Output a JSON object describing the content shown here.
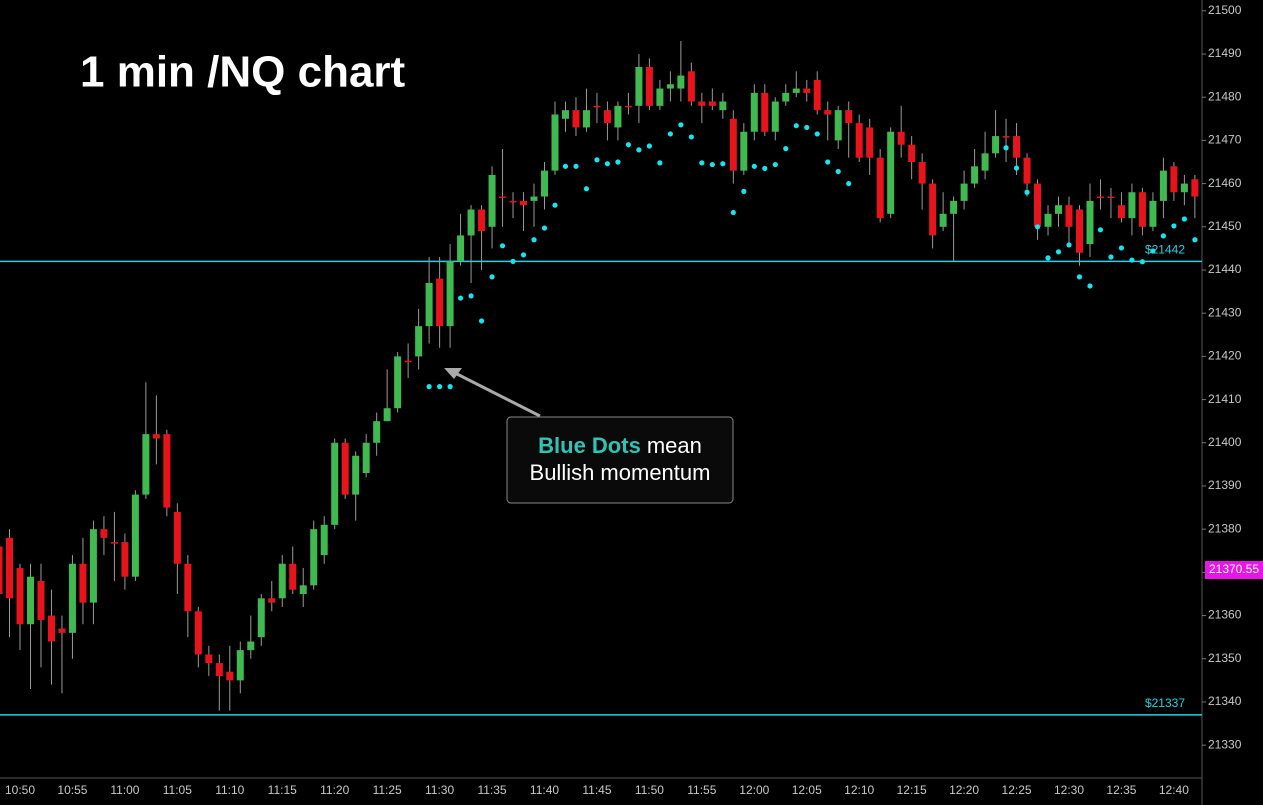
{
  "chart_data": {
    "type": "candlestick",
    "title": "1 min /NQ chart",
    "annotation": [
      "Blue Dots",
      "mean",
      "Bullish momentum"
    ],
    "categories": [
      null,
      null,
      "10:50",
      null,
      null,
      null,
      null,
      "10:55",
      null,
      null,
      null,
      null,
      "11:00",
      null,
      null,
      null,
      null,
      "11:05",
      null,
      null,
      null,
      null,
      "11:10",
      null,
      null,
      null,
      null,
      "11:15",
      null,
      null,
      null,
      null,
      "11:20",
      null,
      null,
      null,
      null,
      "11:25",
      null,
      null,
      null,
      null,
      "11:30",
      null,
      null,
      null,
      null,
      "11:35",
      null,
      null,
      null,
      null,
      "11:40",
      null,
      null,
      null,
      null,
      "11:45",
      null,
      null,
      null,
      null,
      "11:50",
      null,
      null,
      null,
      null,
      "11:55",
      null,
      null,
      null,
      null,
      "12:00",
      null,
      null,
      null,
      null,
      "12:05",
      null,
      null,
      null,
      null,
      "12:10",
      null,
      null,
      null,
      null,
      "12:15",
      null,
      null,
      null,
      null,
      "12:20",
      null,
      null,
      null,
      null,
      "12:25",
      null,
      null,
      null,
      null,
      "12:30",
      null,
      null,
      null,
      null,
      "12:35",
      null,
      null,
      null,
      null,
      "12:40",
      null,
      null
    ],
    "open": [
      21376,
      21378,
      21371,
      21358,
      21368,
      21360,
      21357,
      21356,
      21372,
      21363,
      21380,
      21377,
      21377,
      21369,
      21388,
      21402,
      21402,
      21384,
      21372,
      21361,
      21351,
      21349,
      21347,
      21345,
      21352,
      21355,
      21364,
      21364,
      21372,
      21365,
      21367,
      21374,
      21381,
      21400,
      21388,
      21393,
      21400,
      21405,
      21408,
      21419,
      21420,
      21427,
      21438,
      21427,
      21442,
      21448,
      21454,
      21450,
      21457,
      21456,
      21456,
      21456,
      21457,
      21463,
      21475,
      21477,
      21473,
      21478,
      21477,
      21473,
      21478,
      21478,
      21487,
      21478,
      21482,
      21482,
      21486,
      21479,
      21479,
      21477,
      21475,
      21463,
      21472,
      21481,
      21472,
      21479,
      21481,
      21482,
      21484,
      21477,
      21470,
      21477,
      21474,
      21473,
      21466,
      21453,
      21472,
      21469,
      21465,
      21460,
      21450,
      21453,
      21456,
      21460,
      21463,
      21467,
      21471,
      21471,
      21466,
      21460,
      21450,
      21453,
      21455,
      21454,
      21446,
      21457,
      21457,
      21455,
      21452,
      21458,
      21450,
      21456,
      21464,
      21458,
      21461
    ],
    "high": [
      21382,
      21380,
      21372,
      21372,
      21372,
      21366,
      21360,
      21374,
      21378,
      21382,
      21383,
      21384,
      21379,
      21389,
      21414,
      21411,
      21403,
      21386,
      21374,
      21362,
      21353,
      21351,
      21353,
      21354,
      21360,
      21365,
      21368,
      21374,
      21376,
      21371,
      21382,
      21383,
      21401,
      21401,
      21398,
      21402,
      21407,
      21417,
      21421,
      21423,
      21431,
      21443,
      21443,
      21446,
      21453,
      21455,
      21455,
      21464,
      21468,
      21458,
      21458,
      21460,
      21465,
      21479,
      21479,
      21480,
      21482,
      21481,
      21479,
      21479,
      21481,
      21490,
      21489,
      21484,
      21486,
      21493,
      21488,
      21481,
      21482,
      21481,
      21477,
      21474,
      21483,
      21483,
      21480,
      21483,
      21486,
      21484,
      21486,
      21479,
      21478,
      21479,
      21476,
      21475,
      21468,
      21473,
      21478,
      21471,
      21467,
      21461,
      21458,
      21457,
      21463,
      21468,
      21472,
      21477,
      21475,
      21474,
      21467,
      21461,
      21455,
      21457,
      21457,
      21455,
      21460,
      21461,
      21459,
      21458,
      21460,
      21459,
      21458,
      21466,
      21465,
      21462,
      21462
    ],
    "low": [
      21360,
      21355,
      21352,
      21343,
      21348,
      21344,
      21342,
      21350,
      21358,
      21358,
      21374,
      21368,
      21366,
      21368,
      21387,
      21395,
      21383,
      21365,
      21355,
      21348,
      21346,
      21338,
      21338,
      21342,
      21350,
      21353,
      21361,
      21362,
      21365,
      21362,
      21366,
      21372,
      21380,
      21387,
      21382,
      21392,
      21397,
      21405,
      21407,
      21415,
      21417,
      21423,
      21422,
      21422,
      21441,
      21437,
      21440,
      21445,
      21450,
      21452,
      21449,
      21450,
      21454,
      21462,
      21472,
      21471,
      21472,
      21474,
      21470,
      21470,
      21476,
      21474,
      21477,
      21477,
      21479,
      21479,
      21478,
      21474,
      21477,
      21475,
      21460,
      21462,
      21470,
      21471,
      21470,
      21478,
      21480,
      21479,
      21476,
      21470,
      21468,
      21466,
      21465,
      21462,
      21451,
      21452,
      21466,
      21461,
      21454,
      21445,
      21449,
      21442,
      21454,
      21459,
      21461,
      21466,
      21465,
      21462,
      21457,
      21447,
      21448,
      21450,
      21446,
      21441,
      21443,
      21454,
      21452,
      21451,
      21448,
      21448,
      21449,
      21452,
      21456,
      21455,
      21452
    ],
    "close": [
      21365,
      21364,
      21358,
      21369,
      21359,
      21354,
      21356,
      21372,
      21363,
      21380,
      21378,
      21377,
      21369,
      21388,
      21402,
      21401,
      21385,
      21372,
      21361,
      21351,
      21349,
      21346,
      21345,
      21352,
      21354,
      21364,
      21363,
      21372,
      21366,
      21367,
      21380,
      21381,
      21400,
      21388,
      21397,
      21400,
      21405,
      21408,
      21420,
      21419,
      21427,
      21437,
      21427,
      21442,
      21448,
      21454,
      21449,
      21462,
      21457,
      21456,
      21455,
      21457,
      21463,
      21476,
      21477,
      21473,
      21477,
      21478,
      21474,
      21478,
      21478,
      21487,
      21478,
      21482,
      21483,
      21485,
      21479,
      21478,
      21478,
      21479,
      21463,
      21472,
      21481,
      21472,
      21479,
      21481,
      21482,
      21481,
      21477,
      21476,
      21477,
      21474,
      21466,
      21466,
      21452,
      21472,
      21469,
      21465,
      21460,
      21448,
      21453,
      21456,
      21460,
      21464,
      21467,
      21471,
      21471,
      21466,
      21460,
      21450,
      21453,
      21455,
      21450,
      21444,
      21456,
      21457,
      21457,
      21452,
      21458,
      21450,
      21456,
      21463,
      21458,
      21460,
      21457
    ],
    "sar": [
      null,
      null,
      null,
      null,
      null,
      null,
      null,
      null,
      null,
      null,
      null,
      null,
      null,
      null,
      null,
      null,
      null,
      null,
      null,
      null,
      null,
      null,
      null,
      null,
      null,
      null,
      null,
      null,
      null,
      null,
      null,
      null,
      null,
      null,
      null,
      null,
      null,
      null,
      null,
      null,
      null,
      21413,
      21413,
      21413,
      21433.5,
      21434,
      21428.2,
      21438.4,
      21445.6,
      21442,
      21443.5,
      21447,
      21449.7,
      21455,
      21464,
      21464,
      21458.8,
      21465.5,
      21464.6,
      21465,
      21469,
      21467.8,
      21468.7,
      21464.8,
      21471.5,
      21473.6,
      21470.8,
      21464.8,
      21464.4,
      21464.6,
      21453.3,
      21458.2,
      21464,
      21463.5,
      21464.4,
      21468.1,
      21473.4,
      21473,
      21471.5,
      21465,
      21462.8,
      21460,
      null,
      null,
      null,
      null,
      null,
      null,
      null,
      null,
      null,
      null,
      null,
      null,
      null,
      null,
      21468.3,
      21463.6,
      21458,
      21450,
      21442.8,
      21444.2,
      21445.8,
      21438.4,
      21436.3,
      21449.3,
      21443,
      21445.1,
      21442.3,
      21441.9,
      21444.4,
      21447.9,
      21450.2,
      21451.8,
      21447
    ],
    "up_color": "#3fb950",
    "down_color": "#e8141c",
    "sar_color": "#12e6f0",
    "level_color": "#22d3e6",
    "levels": [
      {
        "value": 21442,
        "label": "$21442"
      },
      {
        "value": 21337,
        "label": "$21337"
      }
    ],
    "last_price": 21370.55,
    "last_price_color": "#e616e6",
    "ylim": [
      21322.4,
      21502.5
    ],
    "yticks": [
      21330,
      21340,
      21350,
      21360,
      21370,
      21380,
      21390,
      21400,
      21410,
      21420,
      21430,
      21440,
      21450,
      21460,
      21470,
      21480,
      21490,
      21500
    ]
  }
}
